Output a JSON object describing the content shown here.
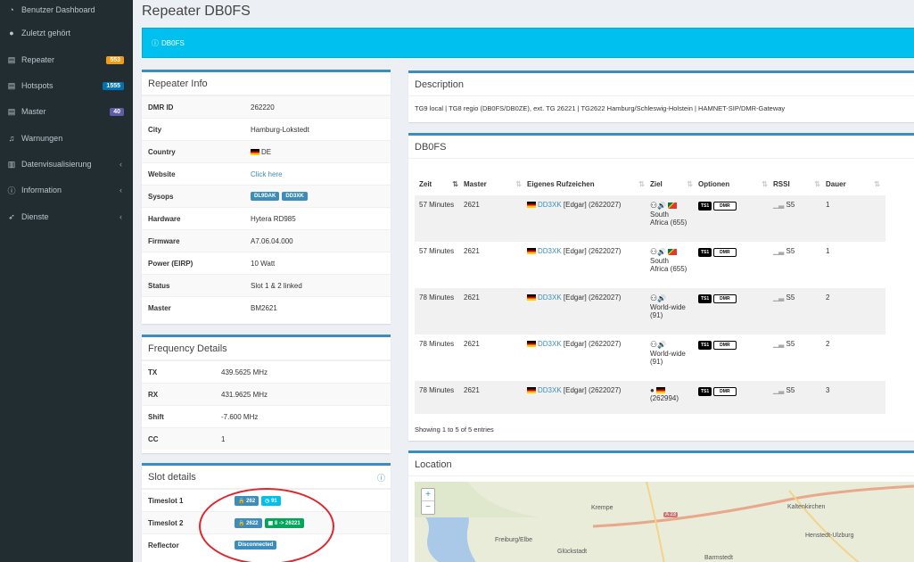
{
  "sidebar": {
    "items": [
      {
        "label": "Benutzer Dashboard",
        "icon": "dashboard-icon"
      },
      {
        "label": "Zuletzt gehört",
        "icon": "user-icon"
      },
      {
        "label": "Repeater",
        "icon": "repeater-icon",
        "badge": "553",
        "badge_color": "#f39c12"
      },
      {
        "label": "Hotspots",
        "icon": "hotspot-icon",
        "badge": "1555",
        "badge_color": "#0073b7"
      },
      {
        "label": "Master",
        "icon": "master-icon",
        "badge": "40",
        "badge_color": "#605ca8"
      },
      {
        "label": "Warnungen",
        "icon": "bell-icon"
      },
      {
        "label": "Datenvisualisierung",
        "icon": "chart-icon",
        "caret": "‹"
      },
      {
        "label": "Information",
        "icon": "info-icon",
        "caret": "‹"
      },
      {
        "label": "Dienste",
        "icon": "rocket-icon",
        "caret": "‹"
      }
    ]
  },
  "page": {
    "title": "Repeater DB0FS",
    "callout": "DB0FS"
  },
  "repeater_info": {
    "title": "Repeater Info",
    "rows": {
      "dmr_id": {
        "k": "DMR ID",
        "v": "262220"
      },
      "city": {
        "k": "City",
        "v": "Hamburg-Lokstedt"
      },
      "country": {
        "k": "Country",
        "v": "DE"
      },
      "website": {
        "k": "Website",
        "v": "Click here"
      },
      "sysops": {
        "k": "Sysops",
        "v1": "DL9DAK",
        "v2": "DD3XK"
      },
      "hardware": {
        "k": "Hardware",
        "v": "Hytera RD985"
      },
      "firmware": {
        "k": "Firmware",
        "v": "A7.06.04.000"
      },
      "power": {
        "k": "Power (EIRP)",
        "v": "10 Watt"
      },
      "status": {
        "k": "Status",
        "v": "Slot 1 & 2 linked"
      },
      "master": {
        "k": "Master",
        "v": "BM2621"
      }
    }
  },
  "frequency": {
    "title": "Frequency Details",
    "rows": {
      "tx": {
        "k": "TX",
        "v": "439.5625 MHz"
      },
      "rx": {
        "k": "RX",
        "v": "431.9625 MHz"
      },
      "shift": {
        "k": "Shift",
        "v": "-7.600 MHz"
      },
      "cc": {
        "k": "CC",
        "v": "1"
      }
    }
  },
  "slots": {
    "title": "Slot details",
    "ts1": {
      "k": "Timeslot 1",
      "a": "262",
      "b": "91"
    },
    "ts2": {
      "k": "Timeslot 2",
      "a": "2622",
      "b": "8 -> 26221"
    },
    "reflector": {
      "k": "Reflector",
      "a": "Disconnected"
    }
  },
  "description": {
    "title": "Description",
    "text": "TG9 local | TG8 regio (DB0FS/DB0ZE), ext. TG 26221 | TG2622 Hamburg/Schleswig-Holstein | HAMNET-SIP/DMR-Gateway"
  },
  "activity": {
    "title": "DB0FS",
    "columns": [
      "Zeit",
      "Master",
      "Eigenes Rufzeichen",
      "Ziel",
      "Optionen",
      "RSSI",
      "Dauer"
    ],
    "rows": [
      {
        "zeit": "57 Minutes",
        "master": "2621",
        "call": "DD3XK",
        "name": "[Edgar]",
        "id": "(2622027)",
        "ziel1": "South",
        "ziel2": "Africa (655)",
        "rssi": "S5",
        "dauer": "1"
      },
      {
        "zeit": "57 Minutes",
        "master": "2621",
        "call": "DD3XK",
        "name": "[Edgar]",
        "id": "(2622027)",
        "ziel1": "South",
        "ziel2": "Africa (655)",
        "rssi": "S5",
        "dauer": "1"
      },
      {
        "zeit": "78 Minutes",
        "master": "2621",
        "call": "DD3XK",
        "name": "[Edgar]",
        "id": "(2622027)",
        "ziel1": "World-wide",
        "ziel2": "(91)",
        "rssi": "S5",
        "dauer": "2"
      },
      {
        "zeit": "78 Minutes",
        "master": "2621",
        "call": "DD3XK",
        "name": "[Edgar]",
        "id": "(2622027)",
        "ziel1": "World-wide",
        "ziel2": "(91)",
        "rssi": "S5",
        "dauer": "2"
      },
      {
        "zeit": "78 Minutes",
        "master": "2621",
        "call": "DD3XK",
        "name": "[Edgar]",
        "id": "(2622027)",
        "ziel1": "",
        "ziel2": "(262994)",
        "rssi": "S5",
        "dauer": "3"
      }
    ],
    "ts": "TS1",
    "dmr": "DMR",
    "footer": "Showing 1 to 5 of 5 entries"
  },
  "location": {
    "title": "Location",
    "zoom_in": "+",
    "zoom_out": "−",
    "places": [
      "Krempe",
      "Kaltenkirchen",
      "Freiburg/Elbe",
      "Glückstadt",
      "Barmstedt",
      "Henstedt-Ulzburg",
      "A 23"
    ]
  },
  "colors": {
    "accent": "#3c8dbc",
    "callout": "#00c0ef",
    "sidebar": "#222d32",
    "green": "#00a65a",
    "cyan": "#00c0ef",
    "annotation": "#e0262d"
  }
}
